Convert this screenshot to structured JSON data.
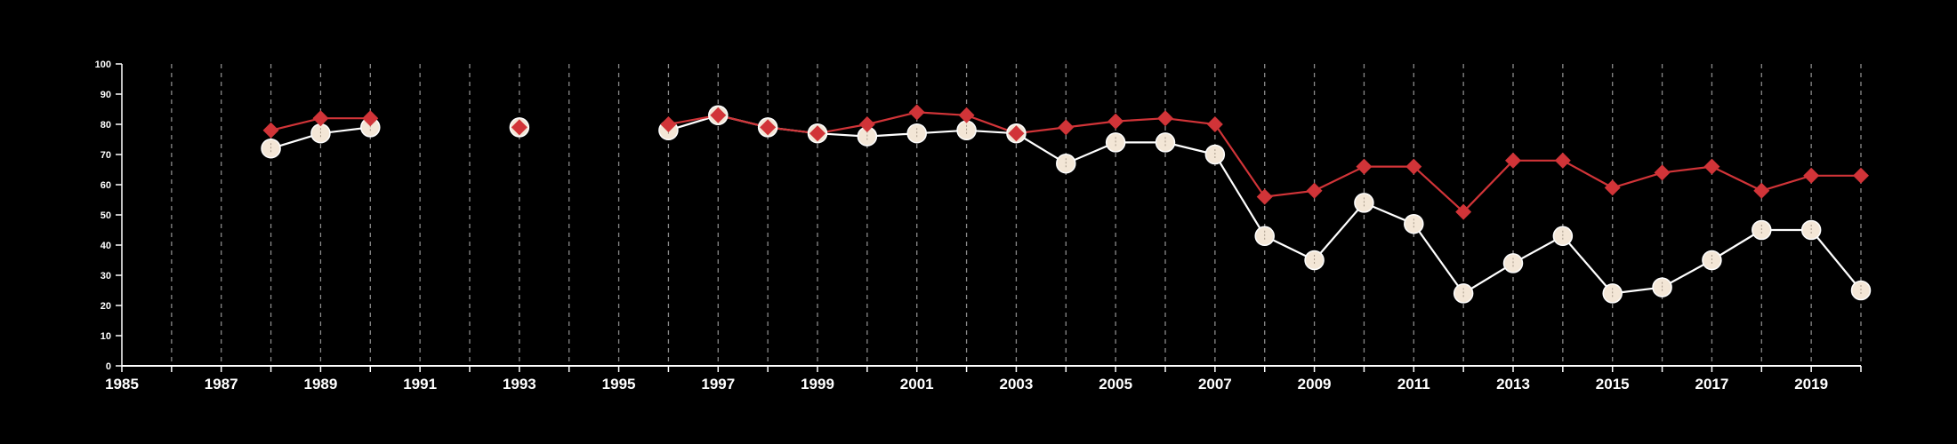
{
  "chart_data": {
    "type": "line",
    "title": "",
    "xlabel": "",
    "ylabel": "",
    "xlim": [
      1985,
      2020
    ],
    "ylim": [
      0,
      100
    ],
    "x_ticks": [
      "1985",
      "1987",
      "1989",
      "1991",
      "1993",
      "1995",
      "1997",
      "1999",
      "2001",
      "2003",
      "2005",
      "2007",
      "2009",
      "2011",
      "2013",
      "2015",
      "2017",
      "2019"
    ],
    "y_ticks": [
      "0",
      "10",
      "20",
      "30",
      "40",
      "50",
      "60",
      "70",
      "80",
      "90",
      "100"
    ],
    "grid": "vertical dashed lines at every year",
    "legend": "none",
    "colors": {
      "background": "#000000",
      "axis": "#ffffff",
      "grid": "#8a8a8a"
    },
    "series": [
      {
        "marker": "circle",
        "color": "#ffffff",
        "marker_fill": "#f3e6d6",
        "points": [
          [
            1988,
            72
          ],
          [
            1989,
            77
          ],
          [
            1990,
            79
          ],
          [
            1993,
            79
          ],
          [
            1996,
            78
          ],
          [
            1997,
            83
          ],
          [
            1998,
            79
          ],
          [
            1999,
            77
          ],
          [
            2000,
            76
          ],
          [
            2001,
            77
          ],
          [
            2002,
            78
          ],
          [
            2003,
            77
          ],
          [
            2004,
            67
          ],
          [
            2005,
            74
          ],
          [
            2006,
            74
          ],
          [
            2007,
            70
          ],
          [
            2008,
            43
          ],
          [
            2009,
            35
          ],
          [
            2010,
            54
          ],
          [
            2011,
            47
          ],
          [
            2012,
            24
          ],
          [
            2013,
            34
          ],
          [
            2014,
            43
          ],
          [
            2015,
            24
          ],
          [
            2016,
            26
          ],
          [
            2017,
            35
          ],
          [
            2018,
            45
          ],
          [
            2019,
            45
          ],
          [
            2020,
            25
          ]
        ]
      },
      {
        "marker": "diamond",
        "color": "#d13438",
        "marker_fill": "#d13438",
        "points": [
          [
            1988,
            78
          ],
          [
            1989,
            82
          ],
          [
            1990,
            82
          ],
          [
            1993,
            79
          ],
          [
            1996,
            80
          ],
          [
            1997,
            83
          ],
          [
            1998,
            79
          ],
          [
            1999,
            77
          ],
          [
            2000,
            80
          ],
          [
            2001,
            84
          ],
          [
            2002,
            83
          ],
          [
            2003,
            77
          ],
          [
            2004,
            79
          ],
          [
            2005,
            81
          ],
          [
            2006,
            82
          ],
          [
            2007,
            80
          ],
          [
            2008,
            56
          ],
          [
            2009,
            58
          ],
          [
            2010,
            66
          ],
          [
            2011,
            66
          ],
          [
            2012,
            51
          ],
          [
            2013,
            68
          ],
          [
            2014,
            68
          ],
          [
            2015,
            59
          ],
          [
            2016,
            64
          ],
          [
            2017,
            66
          ],
          [
            2018,
            58
          ],
          [
            2019,
            63
          ],
          [
            2020,
            63
          ]
        ]
      }
    ]
  }
}
